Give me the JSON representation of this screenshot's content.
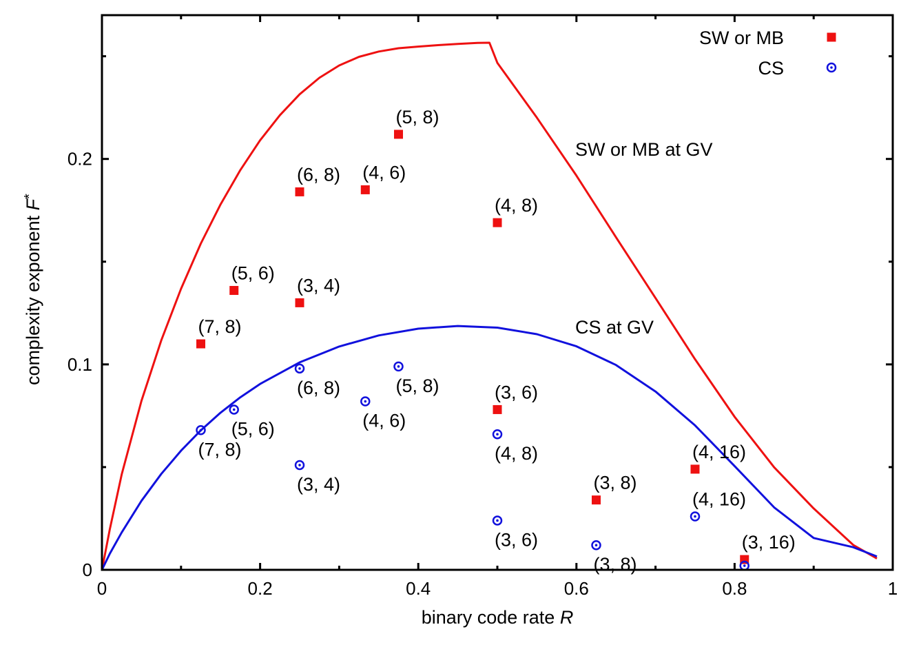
{
  "chart_data": {
    "type": "scatter",
    "xlabel_text": "binary code rate ",
    "xlabel_var": "R",
    "ylabel_text": "complexity exponent ",
    "ylabel_var": "F",
    "ylabel_sup": "*",
    "xlim": [
      0,
      1
    ],
    "ylim": [
      0,
      0.27
    ],
    "x_ticks": [
      {
        "value": 0,
        "label": "0"
      },
      {
        "value": 0.2,
        "label": "0.2"
      },
      {
        "value": 0.4,
        "label": "0.4"
      },
      {
        "value": 0.6,
        "label": "0.6"
      },
      {
        "value": 0.8,
        "label": "0.8"
      },
      {
        "value": 1,
        "label": "1"
      }
    ],
    "y_ticks": [
      {
        "value": 0,
        "label": "0"
      },
      {
        "value": 0.1,
        "label": "0.1"
      },
      {
        "value": 0.2,
        "label": "0.2"
      }
    ],
    "x_minor_ticks": [
      0.1,
      0.3,
      0.5,
      0.7,
      0.9
    ],
    "y_minor_ticks": [
      0.05,
      0.15,
      0.25
    ],
    "grid": false,
    "legend_position": "top-right",
    "colors": {
      "red": "#ee1111",
      "blue": "#1111dd",
      "axis": "#000000"
    },
    "curves": [
      {
        "name": "SW or MB at GV",
        "label": "SW or MB at GV",
        "color": "#ee1111",
        "points": [
          [
            0,
            0
          ],
          [
            0.01,
            0.0199
          ],
          [
            0.025,
            0.0465
          ],
          [
            0.05,
            0.0823
          ],
          [
            0.075,
            0.1117
          ],
          [
            0.1,
            0.1368
          ],
          [
            0.125,
            0.1588
          ],
          [
            0.15,
            0.1779
          ],
          [
            0.175,
            0.1946
          ],
          [
            0.2,
            0.2091
          ],
          [
            0.225,
            0.2213
          ],
          [
            0.25,
            0.2315
          ],
          [
            0.275,
            0.2395
          ],
          [
            0.3,
            0.2455
          ],
          [
            0.325,
            0.2497
          ],
          [
            0.35,
            0.2523
          ],
          [
            0.375,
            0.2539
          ],
          [
            0.4,
            0.2547
          ],
          [
            0.425,
            0.2554
          ],
          [
            0.45,
            0.256
          ],
          [
            0.475,
            0.2565
          ],
          [
            0.49,
            0.2566
          ],
          [
            0.5,
            0.2468
          ],
          [
            0.55,
            0.2201
          ],
          [
            0.6,
            0.1919
          ],
          [
            0.65,
            0.1619
          ],
          [
            0.7,
            0.1323
          ],
          [
            0.75,
            0.1025
          ],
          [
            0.8,
            0.0745
          ],
          [
            0.85,
            0.0499
          ],
          [
            0.9,
            0.0299
          ],
          [
            0.95,
            0.0121
          ],
          [
            0.98,
            0.0055
          ]
        ]
      },
      {
        "name": "CS at GV",
        "label": "CS at GV",
        "color": "#1111dd",
        "points": [
          [
            0,
            0
          ],
          [
            0.01,
            0.0079
          ],
          [
            0.025,
            0.0182
          ],
          [
            0.05,
            0.0336
          ],
          [
            0.075,
            0.0467
          ],
          [
            0.1,
            0.058
          ],
          [
            0.125,
            0.0679
          ],
          [
            0.15,
            0.0765
          ],
          [
            0.175,
            0.084
          ],
          [
            0.2,
            0.0905
          ],
          [
            0.25,
            0.101
          ],
          [
            0.3,
            0.1087
          ],
          [
            0.35,
            0.1141
          ],
          [
            0.4,
            0.1174
          ],
          [
            0.45,
            0.1187
          ],
          [
            0.5,
            0.1179
          ],
          [
            0.55,
            0.1147
          ],
          [
            0.6,
            0.1088
          ],
          [
            0.65,
            0.0997
          ],
          [
            0.7,
            0.0868
          ],
          [
            0.75,
            0.0703
          ],
          [
            0.8,
            0.0505
          ],
          [
            0.85,
            0.0304
          ],
          [
            0.9,
            0.0155
          ],
          [
            0.95,
            0.011
          ],
          [
            0.98,
            0.0065
          ]
        ]
      }
    ],
    "series": [
      {
        "name": "SW or MB",
        "marker": "square",
        "color": "#ee1111",
        "points": [
          {
            "x": 0.125,
            "y": 0.11,
            "label": "(7, 8)",
            "label_pos": "above"
          },
          {
            "x": 0.167,
            "y": 0.136,
            "label": "(5, 6)",
            "label_pos": "above"
          },
          {
            "x": 0.25,
            "y": 0.184,
            "label": "(6, 8)",
            "label_pos": "above"
          },
          {
            "x": 0.25,
            "y": 0.13,
            "label": "(3, 4)",
            "label_pos": "above"
          },
          {
            "x": 0.333,
            "y": 0.185,
            "label": "(4, 6)",
            "label_pos": "above"
          },
          {
            "x": 0.375,
            "y": 0.212,
            "label": "(5, 8)",
            "label_pos": "above"
          },
          {
            "x": 0.5,
            "y": 0.169,
            "label": "(4, 8)",
            "label_pos": "above"
          },
          {
            "x": 0.5,
            "y": 0.078,
            "label": "(3, 6)",
            "label_pos": "above"
          },
          {
            "x": 0.625,
            "y": 0.034,
            "label": "(3, 8)",
            "label_pos": "above"
          },
          {
            "x": 0.75,
            "y": 0.049,
            "label": "(4, 16)",
            "label_pos": "above"
          },
          {
            "x": 0.8125,
            "y": 0.005,
            "label": "(3, 16)",
            "label_pos": "above"
          }
        ]
      },
      {
        "name": "CS",
        "marker": "circle",
        "color": "#1111dd",
        "points": [
          {
            "x": 0.125,
            "y": 0.068,
            "label": "(7, 8)",
            "label_pos": "below"
          },
          {
            "x": 0.167,
            "y": 0.078,
            "label": "(5, 6)",
            "label_pos": "below"
          },
          {
            "x": 0.25,
            "y": 0.098,
            "label": "(6, 8)",
            "label_pos": "below"
          },
          {
            "x": 0.25,
            "y": 0.051,
            "label": "(3, 4)",
            "label_pos": "below"
          },
          {
            "x": 0.333,
            "y": 0.082,
            "label": "(4, 6)",
            "label_pos": "below"
          },
          {
            "x": 0.375,
            "y": 0.099,
            "label": "(5, 8)",
            "label_pos": "below"
          },
          {
            "x": 0.5,
            "y": 0.066,
            "label": "(4, 8)",
            "label_pos": "below"
          },
          {
            "x": 0.5,
            "y": 0.024,
            "label": "(3, 6)",
            "label_pos": "below"
          },
          {
            "x": 0.625,
            "y": 0.012,
            "label": "(3, 8)",
            "label_pos": "below"
          },
          {
            "x": 0.75,
            "y": 0.026,
            "label": "(4, 16)",
            "label_pos": "above"
          },
          {
            "x": 0.8125,
            "y": 0.002,
            "label": "",
            "label_pos": "none"
          }
        ]
      }
    ]
  }
}
